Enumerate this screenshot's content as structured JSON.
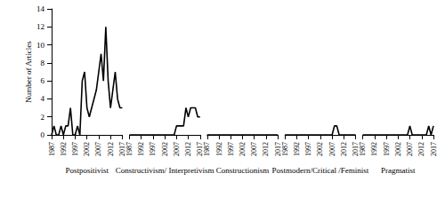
{
  "chart_data": [
    {
      "type": "line",
      "x_label": "Postpositivist",
      "y_label": "Number of Articles",
      "color": "#000000",
      "grid": false,
      "x": [
        1987,
        1988,
        1989,
        1990,
        1991,
        1992,
        1993,
        1994,
        1995,
        1996,
        1997,
        1998,
        1999,
        2000,
        2001,
        2002,
        2003,
        2004,
        2005,
        2006,
        2007,
        2008,
        2009,
        2010,
        2011,
        2012,
        2013,
        2014,
        2015,
        2016,
        2017
      ],
      "values": [
        0,
        1,
        0,
        0,
        1,
        0,
        1,
        1,
        3,
        0,
        0,
        1,
        0,
        6,
        7,
        3,
        2,
        3,
        4,
        5,
        7,
        9,
        6,
        12,
        6,
        3,
        5,
        7,
        4,
        3,
        3
      ],
      "xlim": [
        1987,
        2017
      ],
      "xticks": [
        1987,
        1992,
        1997,
        2002,
        2007,
        2012,
        2017
      ],
      "ylim": [
        0,
        14
      ],
      "yticks": [
        0,
        2,
        4,
        6,
        8,
        10,
        12,
        14
      ]
    },
    {
      "type": "line",
      "x_label": "Constructivism/ Interpretivism",
      "color": "#000000",
      "grid": false,
      "tick_labels": "x",
      "x": [
        1987,
        1988,
        1989,
        1990,
        1991,
        1992,
        1993,
        1994,
        1995,
        1996,
        1997,
        1998,
        1999,
        2000,
        2001,
        2002,
        2003,
        2004,
        2005,
        2006,
        2007,
        2008,
        2009,
        2010,
        2011,
        2012,
        2013,
        2014,
        2015,
        2016,
        2017
      ],
      "values": [
        0,
        0,
        0,
        0,
        0,
        0,
        0,
        0,
        0,
        0,
        0,
        0,
        0,
        0,
        0,
        0,
        0,
        0,
        0,
        0,
        1,
        1,
        1,
        1,
        3,
        2,
        3,
        3,
        3,
        2,
        2
      ],
      "xlim": [
        1987,
        2017
      ],
      "xticks": [
        1987,
        1992,
        1997,
        2002,
        2007,
        2012,
        2017
      ],
      "ylim": [
        0,
        14
      ],
      "yticks": [
        0,
        2,
        4,
        6,
        8,
        10,
        12,
        14
      ]
    },
    {
      "type": "line",
      "x_label": "Constructionism",
      "color": "#000000",
      "grid": false,
      "tick_labels": "x",
      "x": [
        1987,
        1988,
        1989,
        1990,
        1991,
        1992,
        1993,
        1994,
        1995,
        1996,
        1997,
        1998,
        1999,
        2000,
        2001,
        2002,
        2003,
        2004,
        2005,
        2006,
        2007,
        2008,
        2009,
        2010,
        2011,
        2012,
        2013,
        2014,
        2015,
        2016,
        2017
      ],
      "values": [
        0,
        0,
        0,
        0,
        0,
        0,
        0,
        0,
        0,
        0,
        0,
        0,
        0,
        0,
        0,
        0,
        0,
        0,
        0,
        0,
        0,
        0,
        0,
        0,
        0,
        0,
        0,
        0,
        0,
        0,
        0
      ],
      "xlim": [
        1987,
        2017
      ],
      "xticks": [
        1987,
        1992,
        1997,
        2002,
        2007,
        2012,
        2017
      ],
      "ylim": [
        0,
        14
      ],
      "yticks": [
        0,
        2,
        4,
        6,
        8,
        10,
        12,
        14
      ]
    },
    {
      "type": "line",
      "x_label": "Postmodern/Critical /Feminist",
      "color": "#000000",
      "grid": false,
      "tick_labels": "x",
      "x": [
        1987,
        1988,
        1989,
        1990,
        1991,
        1992,
        1993,
        1994,
        1995,
        1996,
        1997,
        1998,
        1999,
        2000,
        2001,
        2002,
        2003,
        2004,
        2005,
        2006,
        2007,
        2008,
        2009,
        2010,
        2011,
        2012,
        2013,
        2014,
        2015,
        2016,
        2017
      ],
      "values": [
        0,
        0,
        0,
        0,
        0,
        0,
        0,
        0,
        0,
        0,
        0,
        0,
        0,
        0,
        0,
        0,
        0,
        0,
        0,
        0,
        0,
        1,
        1,
        0,
        0,
        0,
        0,
        0,
        0,
        0,
        0
      ],
      "xlim": [
        1987,
        2017
      ],
      "xticks": [
        1987,
        1992,
        1997,
        2002,
        2007,
        2012,
        2017
      ],
      "ylim": [
        0,
        14
      ],
      "yticks": [
        0,
        2,
        4,
        6,
        8,
        10,
        12,
        14
      ]
    },
    {
      "type": "line",
      "x_label": "Pragmatist",
      "color": "#000000",
      "grid": false,
      "tick_labels": "x",
      "x": [
        1987,
        1988,
        1989,
        1990,
        1991,
        1992,
        1993,
        1994,
        1995,
        1996,
        1997,
        1998,
        1999,
        2000,
        2001,
        2002,
        2003,
        2004,
        2005,
        2006,
        2007,
        2008,
        2009,
        2010,
        2011,
        2012,
        2013,
        2014,
        2015,
        2016,
        2017
      ],
      "values": [
        0,
        0,
        0,
        0,
        0,
        0,
        0,
        0,
        0,
        0,
        0,
        0,
        0,
        0,
        0,
        0,
        0,
        0,
        0,
        0,
        1,
        0,
        0,
        0,
        0,
        0,
        0,
        0,
        1,
        0,
        1
      ],
      "xlim": [
        1987,
        2017
      ],
      "xticks": [
        1987,
        1992,
        1997,
        2002,
        2007,
        2012,
        2017
      ],
      "ylim": [
        0,
        14
      ],
      "yticks": [
        0,
        2,
        4,
        6,
        8,
        10,
        12,
        14
      ]
    }
  ]
}
